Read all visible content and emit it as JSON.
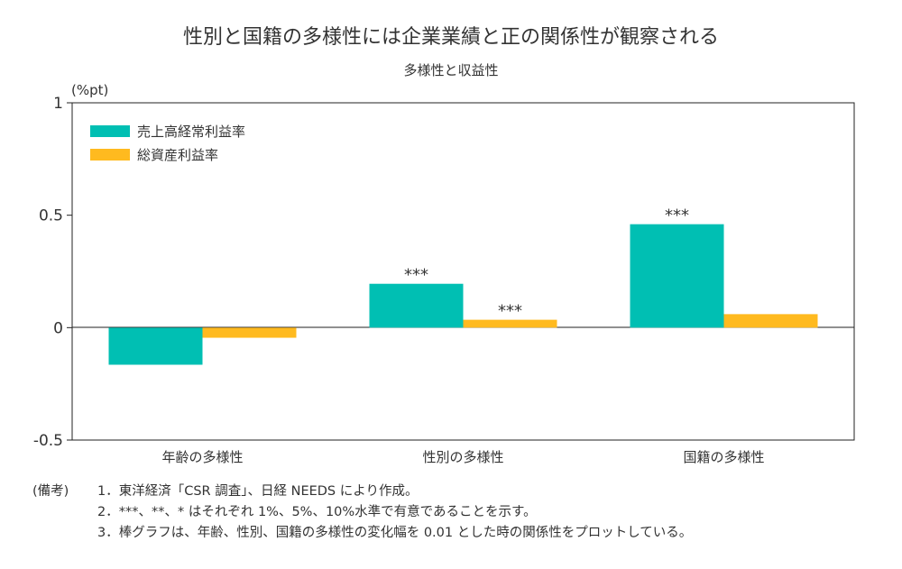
{
  "chart_data": {
    "type": "bar",
    "title": "性別と国籍の多様性には企業業績と正の関係性が観察される",
    "subtitle": "多様性と収益性",
    "ylabel": "(%pt)",
    "ylim": [
      -0.5,
      1
    ],
    "yticks": [
      "1",
      "0.5",
      "0",
      "-0.5"
    ],
    "ytick_values": [
      1,
      0.5,
      0,
      -0.5
    ],
    "categories": [
      "年齢の多様性",
      "性別の多様性",
      "国籍の多様性"
    ],
    "series": [
      {
        "name": "売上高経常利益率",
        "color": "#00bfb3",
        "values": [
          -0.165,
          0.195,
          0.46
        ],
        "significance": [
          "",
          "***",
          "***"
        ]
      },
      {
        "name": "総資産利益率",
        "color": "#ffba1f",
        "values": [
          -0.045,
          0.035,
          0.06
        ],
        "significance": [
          "",
          "***",
          ""
        ]
      }
    ],
    "legend_position": "top-left",
    "grid": false
  },
  "notes": {
    "heading": "(備考)",
    "lines": [
      "1．東洋経済「CSR 調査」、日経 NEEDS により作成。",
      "2．***、**、* はそれぞれ 1%、5%、10%水準で有意であることを示す。",
      "3．棒グラフは、年齢、性別、国籍の多様性の変化幅を 0.01 とした時の関係性をプロットしている。"
    ]
  }
}
